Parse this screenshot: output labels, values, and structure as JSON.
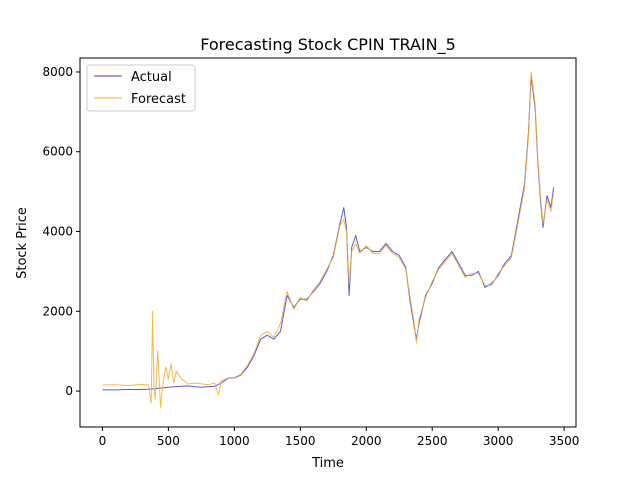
{
  "chart_data": {
    "type": "line",
    "title": "Forecasting Stock CPIN TRAIN_5",
    "xlabel": "Time",
    "ylabel": "Stock Price",
    "xlim": [
      -170,
      3590
    ],
    "ylim": [
      -900,
      8350
    ],
    "xticks": [
      0,
      500,
      1000,
      1500,
      2000,
      2500,
      3000,
      3500
    ],
    "yticks": [
      0,
      2000,
      4000,
      6000,
      8000
    ],
    "grid": false,
    "legend_position": "upper-left",
    "series": [
      {
        "name": "Actual",
        "color": "#3b3bdc",
        "points": [
          [
            0,
            30
          ],
          [
            100,
            30
          ],
          [
            200,
            40
          ],
          [
            300,
            40
          ],
          [
            350,
            50
          ],
          [
            400,
            60
          ],
          [
            450,
            80
          ],
          [
            500,
            100
          ],
          [
            550,
            110
          ],
          [
            600,
            120
          ],
          [
            650,
            130
          ],
          [
            700,
            110
          ],
          [
            750,
            100
          ],
          [
            800,
            110
          ],
          [
            850,
            120
          ],
          [
            900,
            200
          ],
          [
            950,
            320
          ],
          [
            1000,
            330
          ],
          [
            1050,
            400
          ],
          [
            1100,
            600
          ],
          [
            1150,
            900
          ],
          [
            1200,
            1300
          ],
          [
            1250,
            1400
          ],
          [
            1300,
            1300
          ],
          [
            1350,
            1500
          ],
          [
            1400,
            2400
          ],
          [
            1450,
            2100
          ],
          [
            1500,
            2300
          ],
          [
            1550,
            2300
          ],
          [
            1600,
            2500
          ],
          [
            1650,
            2700
          ],
          [
            1700,
            3000
          ],
          [
            1750,
            3400
          ],
          [
            1800,
            4200
          ],
          [
            1830,
            4600
          ],
          [
            1850,
            4100
          ],
          [
            1870,
            2400
          ],
          [
            1890,
            3600
          ],
          [
            1920,
            3900
          ],
          [
            1950,
            3500
          ],
          [
            2000,
            3600
          ],
          [
            2050,
            3500
          ],
          [
            2100,
            3500
          ],
          [
            2150,
            3700
          ],
          [
            2200,
            3500
          ],
          [
            2250,
            3400
          ],
          [
            2300,
            3100
          ],
          [
            2330,
            2300
          ],
          [
            2360,
            1700
          ],
          [
            2380,
            1300
          ],
          [
            2400,
            1700
          ],
          [
            2450,
            2400
          ],
          [
            2500,
            2700
          ],
          [
            2550,
            3100
          ],
          [
            2600,
            3300
          ],
          [
            2650,
            3500
          ],
          [
            2700,
            3200
          ],
          [
            2750,
            2900
          ],
          [
            2800,
            2900
          ],
          [
            2850,
            3000
          ],
          [
            2900,
            2600
          ],
          [
            2950,
            2700
          ],
          [
            3000,
            2900
          ],
          [
            3050,
            3200
          ],
          [
            3100,
            3400
          ],
          [
            3150,
            4300
          ],
          [
            3200,
            5200
          ],
          [
            3230,
            6500
          ],
          [
            3250,
            7900
          ],
          [
            3280,
            7100
          ],
          [
            3300,
            5800
          ],
          [
            3320,
            4800
          ],
          [
            3340,
            4100
          ],
          [
            3370,
            4900
          ],
          [
            3400,
            4600
          ],
          [
            3420,
            5100
          ]
        ]
      },
      {
        "name": "Forecast",
        "color": "#f5ad2a",
        "points": [
          [
            0,
            150
          ],
          [
            100,
            160
          ],
          [
            200,
            140
          ],
          [
            300,
            170
          ],
          [
            350,
            150
          ],
          [
            370,
            -300
          ],
          [
            380,
            2000
          ],
          [
            390,
            100
          ],
          [
            400,
            -200
          ],
          [
            420,
            1000
          ],
          [
            440,
            -400
          ],
          [
            460,
            200
          ],
          [
            480,
            600
          ],
          [
            500,
            300
          ],
          [
            520,
            700
          ],
          [
            540,
            200
          ],
          [
            560,
            500
          ],
          [
            600,
            300
          ],
          [
            650,
            180
          ],
          [
            700,
            200
          ],
          [
            750,
            180
          ],
          [
            800,
            160
          ],
          [
            850,
            200
          ],
          [
            880,
            -100
          ],
          [
            900,
            250
          ],
          [
            950,
            330
          ],
          [
            1000,
            340
          ],
          [
            1050,
            420
          ],
          [
            1100,
            650
          ],
          [
            1150,
            950
          ],
          [
            1200,
            1400
          ],
          [
            1250,
            1500
          ],
          [
            1300,
            1350
          ],
          [
            1350,
            1700
          ],
          [
            1400,
            2500
          ],
          [
            1450,
            2050
          ],
          [
            1500,
            2350
          ],
          [
            1550,
            2250
          ],
          [
            1600,
            2550
          ],
          [
            1650,
            2750
          ],
          [
            1700,
            3050
          ],
          [
            1750,
            3350
          ],
          [
            1800,
            4150
          ],
          [
            1830,
            4300
          ],
          [
            1850,
            4000
          ],
          [
            1870,
            2700
          ],
          [
            1890,
            3500
          ],
          [
            1920,
            3700
          ],
          [
            1950,
            3450
          ],
          [
            2000,
            3650
          ],
          [
            2050,
            3450
          ],
          [
            2100,
            3450
          ],
          [
            2150,
            3650
          ],
          [
            2200,
            3450
          ],
          [
            2250,
            3350
          ],
          [
            2300,
            3050
          ],
          [
            2330,
            2400
          ],
          [
            2360,
            1800
          ],
          [
            2380,
            1200
          ],
          [
            2400,
            1800
          ],
          [
            2450,
            2350
          ],
          [
            2500,
            2750
          ],
          [
            2550,
            3050
          ],
          [
            2600,
            3250
          ],
          [
            2650,
            3450
          ],
          [
            2700,
            3150
          ],
          [
            2750,
            2850
          ],
          [
            2800,
            2950
          ],
          [
            2850,
            2950
          ],
          [
            2900,
            2650
          ],
          [
            2950,
            2650
          ],
          [
            3000,
            2950
          ],
          [
            3050,
            3150
          ],
          [
            3100,
            3350
          ],
          [
            3150,
            4200
          ],
          [
            3200,
            5100
          ],
          [
            3230,
            6400
          ],
          [
            3250,
            8000
          ],
          [
            3280,
            7200
          ],
          [
            3300,
            5900
          ],
          [
            3320,
            4900
          ],
          [
            3340,
            4200
          ],
          [
            3370,
            4800
          ],
          [
            3400,
            4500
          ],
          [
            3420,
            5000
          ]
        ]
      }
    ]
  }
}
